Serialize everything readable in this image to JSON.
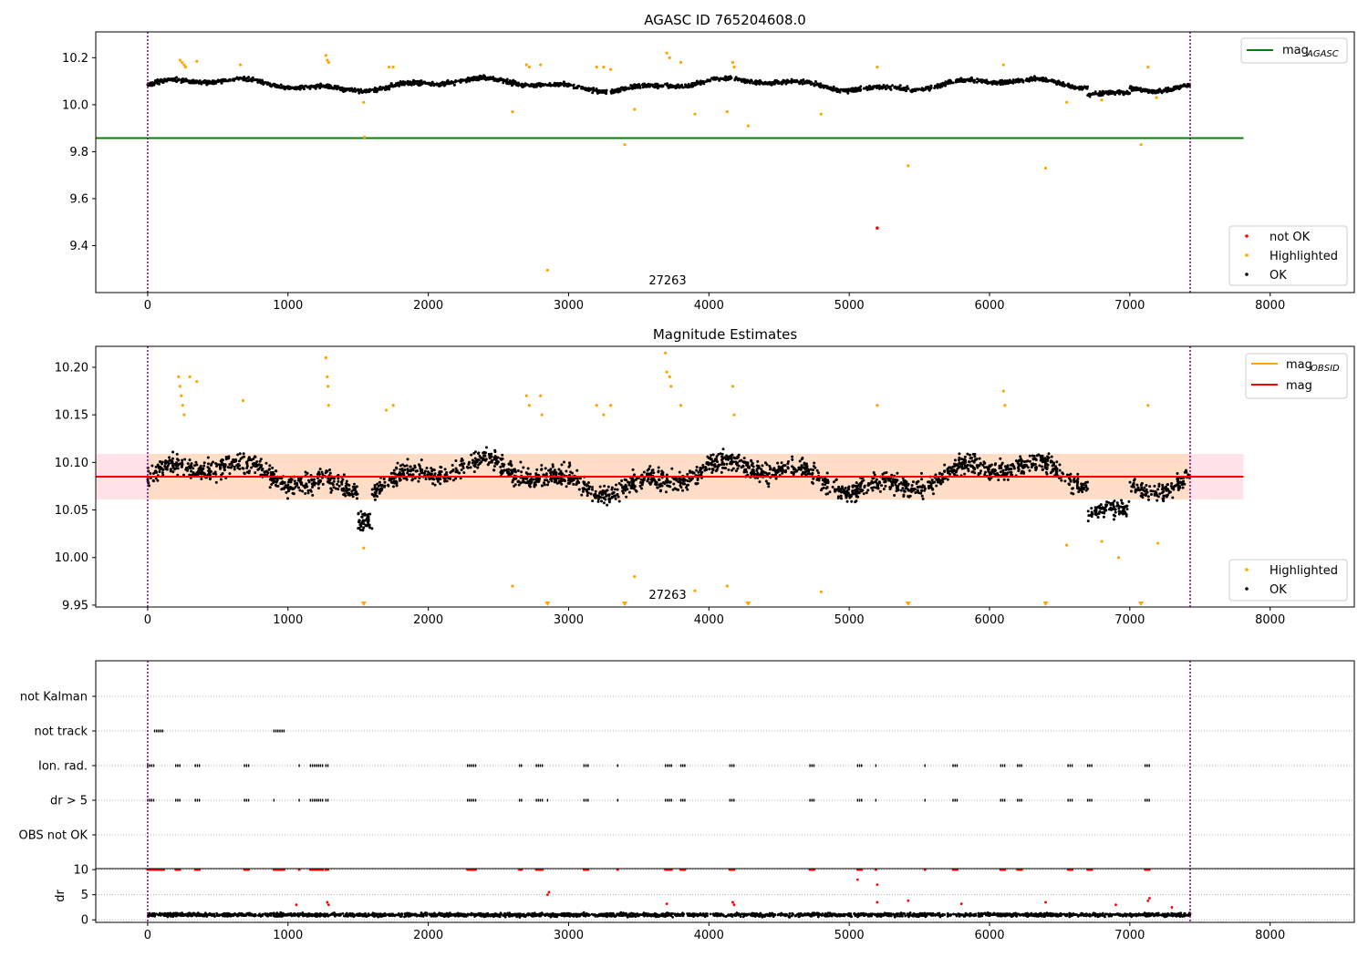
{
  "chart_data": [
    {
      "type": "scatter",
      "title": "AGASC ID 765204608.0",
      "xlim": [
        -370,
        8600
      ],
      "ylim": [
        9.2,
        10.31
      ],
      "x_ticks": [
        "0",
        "1000",
        "2000",
        "3000",
        "4000",
        "5000",
        "6000",
        "7000",
        "8000"
      ],
      "y_ticks": [
        "9.4",
        "9.6",
        "9.8",
        "10.0",
        "10.2"
      ],
      "y_tick_values": [
        9.4,
        9.6,
        9.8,
        10.0,
        10.2
      ],
      "x_tick_values": [
        0,
        1000,
        2000,
        3000,
        4000,
        5000,
        6000,
        7000,
        8000
      ],
      "vlines": [
        0,
        7430
      ],
      "annotation": {
        "text": "27263",
        "x": 3700,
        "y": 9.235
      },
      "reference_line": {
        "name_base": "mag",
        "name_sub": "AGASC",
        "y": 9.858,
        "x_range": [
          -370,
          7810
        ],
        "color": "#008000"
      },
      "series_ok_band": {
        "x_range": [
          0,
          7430
        ],
        "y_center": 10.085,
        "y_spread": 0.025
      },
      "highlighted_points": [
        [
          230,
          10.19
        ],
        [
          245,
          10.18
        ],
        [
          260,
          10.17
        ],
        [
          270,
          10.16
        ],
        [
          350,
          10.185
        ],
        [
          660,
          10.17
        ],
        [
          1270,
          10.21
        ],
        [
          1280,
          10.19
        ],
        [
          1290,
          10.18
        ],
        [
          1540,
          10.01
        ],
        [
          1545,
          9.862
        ],
        [
          1720,
          10.16
        ],
        [
          1750,
          10.16
        ],
        [
          2600,
          9.97
        ],
        [
          2700,
          10.17
        ],
        [
          2720,
          10.16
        ],
        [
          2800,
          10.17
        ],
        [
          3200,
          10.16
        ],
        [
          3250,
          10.16
        ],
        [
          3300,
          10.15
        ],
        [
          3400,
          9.83
        ],
        [
          3470,
          9.98
        ],
        [
          3700,
          10.22
        ],
        [
          3720,
          10.2
        ],
        [
          3800,
          10.18
        ],
        [
          3900,
          9.96
        ],
        [
          4130,
          9.97
        ],
        [
          4170,
          10.18
        ],
        [
          4180,
          10.16
        ],
        [
          4280,
          9.91
        ],
        [
          4800,
          9.96
        ],
        [
          5200,
          10.16
        ],
        [
          5420,
          9.74
        ],
        [
          6100,
          10.17
        ],
        [
          6400,
          9.73
        ],
        [
          6550,
          10.01
        ],
        [
          6800,
          10.02
        ],
        [
          7080,
          9.83
        ],
        [
          7130,
          10.16
        ],
        [
          7190,
          10.03
        ]
      ],
      "not_ok_points": [
        [
          5200,
          9.475
        ]
      ],
      "outlier_points": [
        [
          2850,
          9.295
        ]
      ],
      "legend_line": {
        "label_base": "mag",
        "label_sub": "AGASC"
      },
      "legend_points": [
        "not OK",
        "Highlighted",
        "OK"
      ]
    },
    {
      "type": "scatter",
      "title": "Magnitude Estimates",
      "xlim": [
        -370,
        8600
      ],
      "ylim": [
        9.948,
        10.222
      ],
      "x_ticks": [
        "0",
        "1000",
        "2000",
        "3000",
        "4000",
        "5000",
        "6000",
        "7000",
        "8000"
      ],
      "y_ticks": [
        "9.95",
        "10.00",
        "10.05",
        "10.10",
        "10.15",
        "10.20"
      ],
      "y_tick_values": [
        9.95,
        10.0,
        10.05,
        10.1,
        10.15,
        10.2
      ],
      "x_tick_values": [
        0,
        1000,
        2000,
        3000,
        4000,
        5000,
        6000,
        7000,
        8000
      ],
      "vlines": [
        0,
        7430
      ],
      "annotation": {
        "text": "27263",
        "x": 3700,
        "y": 9.953
      },
      "mag_line": {
        "y": 10.085,
        "x_range": [
          -370,
          7810
        ],
        "color": "#ff0000"
      },
      "mag_band": {
        "y_low": 10.061,
        "y_high": 10.109,
        "x_range": [
          -370,
          7810
        ]
      },
      "mag_obsid_band": {
        "y_low": 10.061,
        "y_high": 10.109,
        "x_range": [
          0,
          7430
        ]
      },
      "highlighted_points": [
        [
          220,
          10.19
        ],
        [
          230,
          10.18
        ],
        [
          240,
          10.17
        ],
        [
          250,
          10.16
        ],
        [
          260,
          10.15
        ],
        [
          300,
          10.19
        ],
        [
          350,
          10.185
        ],
        [
          680,
          10.165
        ],
        [
          1270,
          10.21
        ],
        [
          1280,
          10.19
        ],
        [
          1285,
          10.18
        ],
        [
          1290,
          10.16
        ],
        [
          1540,
          10.01
        ],
        [
          1700,
          10.155
        ],
        [
          1750,
          10.16
        ],
        [
          2600,
          9.97
        ],
        [
          2700,
          10.17
        ],
        [
          2720,
          10.16
        ],
        [
          2800,
          10.17
        ],
        [
          2810,
          10.15
        ],
        [
          3200,
          10.16
        ],
        [
          3250,
          10.15
        ],
        [
          3300,
          10.16
        ],
        [
          3470,
          9.98
        ],
        [
          3690,
          10.215
        ],
        [
          3700,
          10.195
        ],
        [
          3720,
          10.19
        ],
        [
          3730,
          10.18
        ],
        [
          3800,
          10.16
        ],
        [
          3900,
          9.965
        ],
        [
          4130,
          9.97
        ],
        [
          4170,
          10.18
        ],
        [
          4180,
          10.15
        ],
        [
          4800,
          9.964
        ],
        [
          5200,
          10.16
        ],
        [
          6100,
          10.175
        ],
        [
          6110,
          10.16
        ],
        [
          6550,
          10.013
        ],
        [
          6800,
          10.017
        ],
        [
          6920,
          10.0
        ],
        [
          7130,
          10.16
        ],
        [
          7200,
          10.015
        ]
      ],
      "below_markers": [
        1540,
        2850,
        3400,
        4280,
        5420,
        6400,
        7080
      ],
      "legend_lines": [
        {
          "label_base": "mag",
          "label_sub": "OBSID",
          "color": "#ffa500"
        },
        {
          "label_base": "mag",
          "label_sub": "",
          "color": "#ff0000"
        }
      ],
      "legend_points": [
        "Highlighted",
        "OK"
      ]
    },
    {
      "type": "scatter",
      "title": "",
      "xlim": [
        -370,
        8600
      ],
      "y_categories": [
        "not Kalman",
        "not track",
        "Ion. rad.",
        "dr > 5",
        "OBS not OK"
      ],
      "vlines": [
        0,
        7430
      ],
      "x_tick_values": [
        0,
        1000,
        2000,
        3000,
        4000,
        5000,
        6000,
        7000,
        8000
      ],
      "flag_segments": {
        "not Kalman": [],
        "not track": [
          [
            50,
            120
          ],
          [
            900,
            980
          ]
        ],
        "Ion. rad.": [
          [
            0,
            50
          ],
          [
            200,
            240
          ],
          [
            340,
            380
          ],
          [
            690,
            720
          ],
          [
            1080,
            1085
          ],
          [
            1160,
            1250
          ],
          [
            1270,
            1290
          ],
          [
            2280,
            2340
          ],
          [
            2650,
            2670
          ],
          [
            2770,
            2820
          ],
          [
            3110,
            3150
          ],
          [
            3350,
            3360
          ],
          [
            3690,
            3740
          ],
          [
            3800,
            3840
          ],
          [
            4150,
            4180
          ],
          [
            4720,
            4760
          ],
          [
            5060,
            5090
          ],
          [
            5190,
            5200
          ],
          [
            5540,
            5550
          ],
          [
            5740,
            5780
          ],
          [
            6080,
            6110
          ],
          [
            6200,
            6240
          ],
          [
            6560,
            6590
          ],
          [
            6700,
            6730
          ],
          [
            7110,
            7140
          ]
        ],
        "dr > 5": [
          [
            0,
            50
          ],
          [
            200,
            240
          ],
          [
            340,
            380
          ],
          [
            690,
            720
          ],
          [
            900,
            910
          ],
          [
            1080,
            1085
          ],
          [
            1160,
            1250
          ],
          [
            1270,
            1290
          ],
          [
            2280,
            2340
          ],
          [
            2650,
            2670
          ],
          [
            2770,
            2820
          ],
          [
            2850,
            2860
          ],
          [
            3110,
            3150
          ],
          [
            3350,
            3360
          ],
          [
            3690,
            3740
          ],
          [
            3800,
            3840
          ],
          [
            4150,
            4180
          ],
          [
            4720,
            4760
          ],
          [
            5060,
            5090
          ],
          [
            5190,
            5200
          ],
          [
            5540,
            5550
          ],
          [
            5740,
            5780
          ],
          [
            6080,
            6110
          ],
          [
            6200,
            6240
          ],
          [
            6560,
            6590
          ],
          [
            6700,
            6730
          ],
          [
            7110,
            7140
          ]
        ],
        "OBS not OK": []
      }
    },
    {
      "type": "scatter",
      "title": "",
      "ylabel": "dr",
      "xlim": [
        -370,
        8600
      ],
      "ylim": [
        -0.5,
        10.2
      ],
      "y_ticks": [
        "0",
        "5",
        "10"
      ],
      "y_tick_values": [
        0,
        5,
        10
      ],
      "x_ticks": [
        "0",
        "1000",
        "2000",
        "3000",
        "4000",
        "5000",
        "6000",
        "7000",
        "8000"
      ],
      "x_tick_values": [
        0,
        1000,
        2000,
        3000,
        4000,
        5000,
        6000,
        7000,
        8000
      ],
      "vlines": [
        0,
        7430
      ],
      "dr_ok_band": {
        "x_range": [
          0,
          7430
        ],
        "y_center": 1.0,
        "y_spread": 0.5
      },
      "dr_high_points_x": [
        [
          0,
          120
        ],
        [
          200,
          240
        ],
        [
          340,
          380
        ],
        [
          690,
          720
        ],
        [
          900,
          980
        ],
        [
          1080,
          1085
        ],
        [
          1160,
          1250
        ],
        [
          1270,
          1290
        ],
        [
          2280,
          2340
        ],
        [
          2650,
          2670
        ],
        [
          2770,
          2820
        ],
        [
          3110,
          3150
        ],
        [
          3350,
          3360
        ],
        [
          3690,
          3740
        ],
        [
          3800,
          3840
        ],
        [
          4150,
          4180
        ],
        [
          4720,
          4760
        ],
        [
          5060,
          5090
        ],
        [
          5190,
          5200
        ],
        [
          5540,
          5550
        ],
        [
          5740,
          5780
        ],
        [
          6080,
          6110
        ],
        [
          6200,
          6240
        ],
        [
          6560,
          6590
        ],
        [
          6700,
          6730
        ],
        [
          7110,
          7140
        ]
      ],
      "dr_mid_points": [
        [
          1060,
          3.0
        ],
        [
          1280,
          3.5
        ],
        [
          1290,
          3.0
        ],
        [
          2850,
          5.0
        ],
        [
          2860,
          5.5
        ],
        [
          3700,
          3.2
        ],
        [
          4170,
          3.5
        ],
        [
          4180,
          3.0
        ],
        [
          5060,
          8.0
        ],
        [
          5200,
          7.0
        ],
        [
          5200,
          3.5
        ],
        [
          5420,
          3.8
        ],
        [
          5800,
          3.2
        ],
        [
          6400,
          3.5
        ],
        [
          6900,
          3.0
        ],
        [
          7130,
          3.8
        ],
        [
          7140,
          4.3
        ],
        [
          7300,
          2.5
        ]
      ]
    }
  ],
  "colors": {
    "ok": "#000000",
    "highlighted": "#ffa500",
    "not_ok": "#ff0000",
    "agasc_line": "#008000",
    "band_fill": "#ffc0cb",
    "obsid_fill": "#ffdab9",
    "vline": "#800080"
  }
}
